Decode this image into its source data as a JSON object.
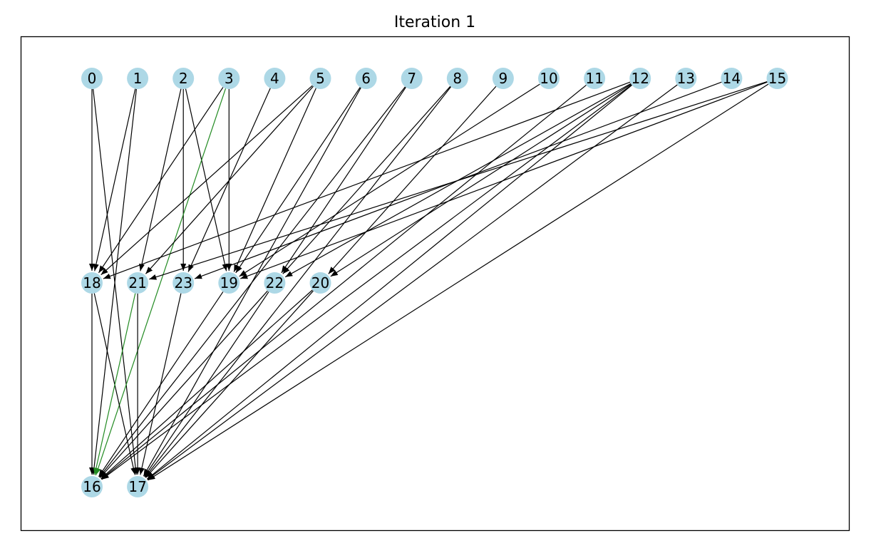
{
  "title": "Iteration 1",
  "colors": {
    "node_fill": "#add8e6",
    "edge_default": "#000000",
    "edge_highlight": "#228b22",
    "frame": "#000000"
  },
  "graph": {
    "nodes": [
      {
        "id": "0",
        "layer": 0,
        "order": 0
      },
      {
        "id": "1",
        "layer": 0,
        "order": 1
      },
      {
        "id": "2",
        "layer": 0,
        "order": 2
      },
      {
        "id": "3",
        "layer": 0,
        "order": 3
      },
      {
        "id": "4",
        "layer": 0,
        "order": 4
      },
      {
        "id": "5",
        "layer": 0,
        "order": 5
      },
      {
        "id": "6",
        "layer": 0,
        "order": 6
      },
      {
        "id": "7",
        "layer": 0,
        "order": 7
      },
      {
        "id": "8",
        "layer": 0,
        "order": 8
      },
      {
        "id": "9",
        "layer": 0,
        "order": 9
      },
      {
        "id": "10",
        "layer": 0,
        "order": 10
      },
      {
        "id": "11",
        "layer": 0,
        "order": 11
      },
      {
        "id": "12",
        "layer": 0,
        "order": 12
      },
      {
        "id": "13",
        "layer": 0,
        "order": 13
      },
      {
        "id": "14",
        "layer": 0,
        "order": 14
      },
      {
        "id": "15",
        "layer": 0,
        "order": 15
      },
      {
        "id": "18",
        "layer": 1,
        "order": 0
      },
      {
        "id": "21",
        "layer": 1,
        "order": 1
      },
      {
        "id": "23",
        "layer": 1,
        "order": 2
      },
      {
        "id": "19",
        "layer": 1,
        "order": 3
      },
      {
        "id": "22",
        "layer": 1,
        "order": 4
      },
      {
        "id": "20",
        "layer": 1,
        "order": 5
      },
      {
        "id": "16",
        "layer": 2,
        "order": 0
      },
      {
        "id": "17",
        "layer": 2,
        "order": 1
      }
    ],
    "edges": [
      {
        "from": "0",
        "to": "18"
      },
      {
        "from": "0",
        "to": "17"
      },
      {
        "from": "1",
        "to": "18"
      },
      {
        "from": "1",
        "to": "16"
      },
      {
        "from": "2",
        "to": "21"
      },
      {
        "from": "2",
        "to": "23"
      },
      {
        "from": "2",
        "to": "19"
      },
      {
        "from": "3",
        "to": "16",
        "highlight": true
      },
      {
        "from": "3",
        "to": "19"
      },
      {
        "from": "3",
        "to": "18"
      },
      {
        "from": "4",
        "to": "23"
      },
      {
        "from": "5",
        "to": "18"
      },
      {
        "from": "5",
        "to": "21"
      },
      {
        "from": "5",
        "to": "19"
      },
      {
        "from": "6",
        "to": "19"
      },
      {
        "from": "6",
        "to": "17"
      },
      {
        "from": "7",
        "to": "22"
      },
      {
        "from": "7",
        "to": "16"
      },
      {
        "from": "8",
        "to": "22"
      },
      {
        "from": "8",
        "to": "17"
      },
      {
        "from": "9",
        "to": "20"
      },
      {
        "from": "10",
        "to": "19"
      },
      {
        "from": "11",
        "to": "16"
      },
      {
        "from": "12",
        "to": "18"
      },
      {
        "from": "12",
        "to": "22"
      },
      {
        "from": "12",
        "to": "20"
      },
      {
        "from": "12",
        "to": "16"
      },
      {
        "from": "12",
        "to": "17"
      },
      {
        "from": "13",
        "to": "17"
      },
      {
        "from": "14",
        "to": "23"
      },
      {
        "from": "15",
        "to": "19"
      },
      {
        "from": "15",
        "to": "21"
      },
      {
        "from": "15",
        "to": "17"
      },
      {
        "from": "18",
        "to": "16"
      },
      {
        "from": "18",
        "to": "17"
      },
      {
        "from": "21",
        "to": "16",
        "highlight": true
      },
      {
        "from": "21",
        "to": "17"
      },
      {
        "from": "23",
        "to": "17"
      },
      {
        "from": "19",
        "to": "16"
      },
      {
        "from": "22",
        "to": "16"
      },
      {
        "from": "22",
        "to": "17"
      },
      {
        "from": "20",
        "to": "16"
      },
      {
        "from": "20",
        "to": "17"
      }
    ]
  }
}
